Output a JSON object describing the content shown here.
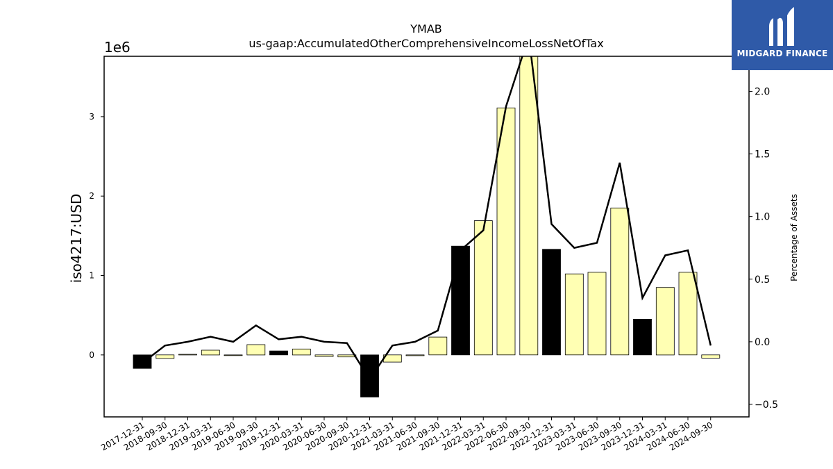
{
  "title_line1": "YMAB",
  "title_line2": "us-gaap:AccumulatedOtherComprehensiveIncomeLossNetOfTax",
  "logo_text": "MIDGARD FINANCE",
  "chart_data": {
    "type": "bar",
    "categories": [
      "2017-12-31",
      "2018-09-30",
      "2018-12-31",
      "2019-03-31",
      "2019-06-30",
      "2019-09-30",
      "2019-12-31",
      "2020-03-31",
      "2020-06-30",
      "2020-09-30",
      "2020-12-31",
      "2021-03-31",
      "2021-06-30",
      "2021-09-30",
      "2021-12-31",
      "2022-03-31",
      "2022-06-30",
      "2022-09-30",
      "2022-12-31",
      "2023-03-31",
      "2023-06-30",
      "2023-09-30",
      "2023-12-31",
      "2024-03-31",
      "2024-06-30",
      "2024-09-30"
    ],
    "values": [
      -170000,
      -45000,
      8000,
      60000,
      -5000,
      130000,
      50000,
      75000,
      -20000,
      -25000,
      -530000,
      -90000,
      -10000,
      225000,
      1370000,
      1690000,
      3110000,
      3820000,
      1330000,
      1020000,
      1040000,
      1850000,
      450000,
      850000,
      1040000,
      -40000
    ],
    "year_end": [
      true,
      false,
      false,
      false,
      false,
      false,
      true,
      false,
      false,
      false,
      true,
      false,
      false,
      false,
      true,
      false,
      false,
      false,
      true,
      false,
      false,
      false,
      true,
      false,
      false,
      false
    ],
    "ylabel": "iso4217:USD",
    "y_offset_label": "1e6",
    "ylim": [
      -780000,
      3760000
    ],
    "yticks": [
      0,
      1,
      2,
      3
    ],
    "line_series": {
      "ylabel": "Percentage of Assets",
      "values": [
        -0.17,
        -0.03,
        0.0,
        0.04,
        0.0,
        0.13,
        0.02,
        0.04,
        0.0,
        -0.01,
        -0.3,
        -0.03,
        0.0,
        0.09,
        0.73,
        0.89,
        1.88,
        2.44,
        0.94,
        0.75,
        0.79,
        1.43,
        0.35,
        0.69,
        0.73,
        -0.03
      ],
      "ylim": [
        -0.6,
        2.28
      ],
      "yticks": [
        "-0.5",
        "0.0",
        "0.5",
        "1.0",
        "1.5",
        "2.0"
      ]
    },
    "colors": {
      "year_end_bar": "#000000",
      "quarter_bar": "#ffffb3",
      "line": "#000000"
    },
    "grid": false,
    "legend": "none"
  }
}
